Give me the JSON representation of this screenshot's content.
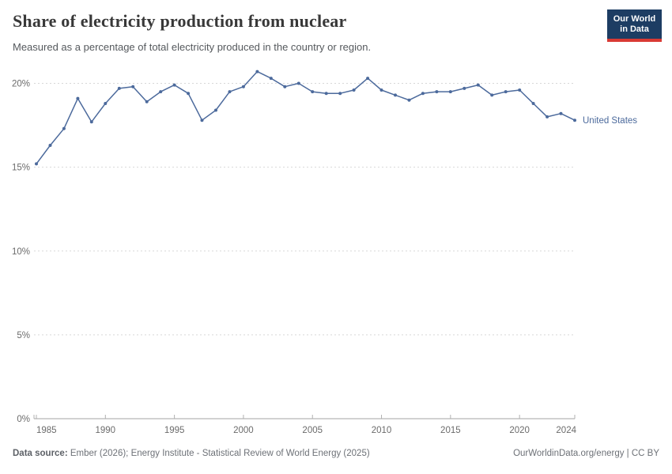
{
  "header": {
    "title": "Share of electricity production from nuclear",
    "subtitle": "Measured as a percentage of total electricity produced in the country or region."
  },
  "logo": {
    "line1": "Our World",
    "line2": "in Data",
    "bg_color": "#1d3d63",
    "accent_color": "#d93a34"
  },
  "chart_data": {
    "type": "line",
    "title": "Share of electricity production from nuclear",
    "xlabel": "",
    "ylabel": "",
    "ylim": [
      0,
      20
    ],
    "yticks": [
      0,
      5,
      10,
      15,
      20
    ],
    "ytick_suffix": "%",
    "xticks": [
      1985,
      1990,
      1995,
      2000,
      2005,
      2010,
      2015,
      2020,
      2024
    ],
    "grid": "horizontal-dashed",
    "legend_position": "end-of-line",
    "x": [
      1985,
      1986,
      1987,
      1988,
      1989,
      1990,
      1991,
      1992,
      1993,
      1994,
      1995,
      1996,
      1997,
      1998,
      1999,
      2000,
      2001,
      2002,
      2003,
      2004,
      2005,
      2006,
      2007,
      2008,
      2009,
      2010,
      2011,
      2012,
      2013,
      2014,
      2015,
      2016,
      2017,
      2018,
      2019,
      2020,
      2021,
      2022,
      2023,
      2024
    ],
    "series": [
      {
        "name": "United States",
        "color": "#4c6a9c",
        "values": [
          15.2,
          16.3,
          17.3,
          19.1,
          17.7,
          18.8,
          19.7,
          19.8,
          18.9,
          19.5,
          19.9,
          19.4,
          17.8,
          18.4,
          19.5,
          19.8,
          20.7,
          20.3,
          19.8,
          20.0,
          19.5,
          19.4,
          19.4,
          19.6,
          20.3,
          19.6,
          19.3,
          19.0,
          19.4,
          19.5,
          19.5,
          19.7,
          19.9,
          19.3,
          19.5,
          19.6,
          18.8,
          18.0,
          18.2,
          17.8
        ]
      }
    ],
    "colors": {
      "gridline": "#d7d7d7",
      "axis": "#a3a3a3",
      "tick": "#b0b0b0",
      "tick_label": "#6b6b6b"
    }
  },
  "footer": {
    "source_label": "Data source:",
    "source_text": " Ember (2026); Energy Institute - Statistical Review of World Energy (2025)",
    "rights_text": "OurWorldinData.org/energy | CC BY"
  }
}
